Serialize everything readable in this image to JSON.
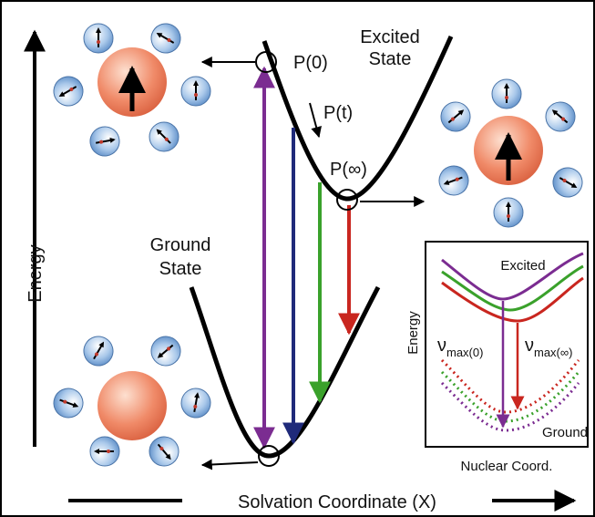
{
  "main": {
    "y_axis_label": "Energy",
    "x_axis_label": "Solvation Coordinate (X)",
    "excited_label": [
      "Excited",
      "State"
    ],
    "ground_label": [
      "Ground",
      "State"
    ],
    "points": [
      "P(0)",
      "P(t)",
      "P(∞)"
    ]
  },
  "inset": {
    "y_axis_label": "Energy",
    "x_axis_label": "Nuclear Coord.",
    "excited_label": "Excited",
    "ground_label": "Ground",
    "transitions": [
      {
        "symbol": "ν",
        "subscript": "max(0)"
      },
      {
        "symbol": "ν",
        "subscript": "max(∞)"
      }
    ]
  }
}
